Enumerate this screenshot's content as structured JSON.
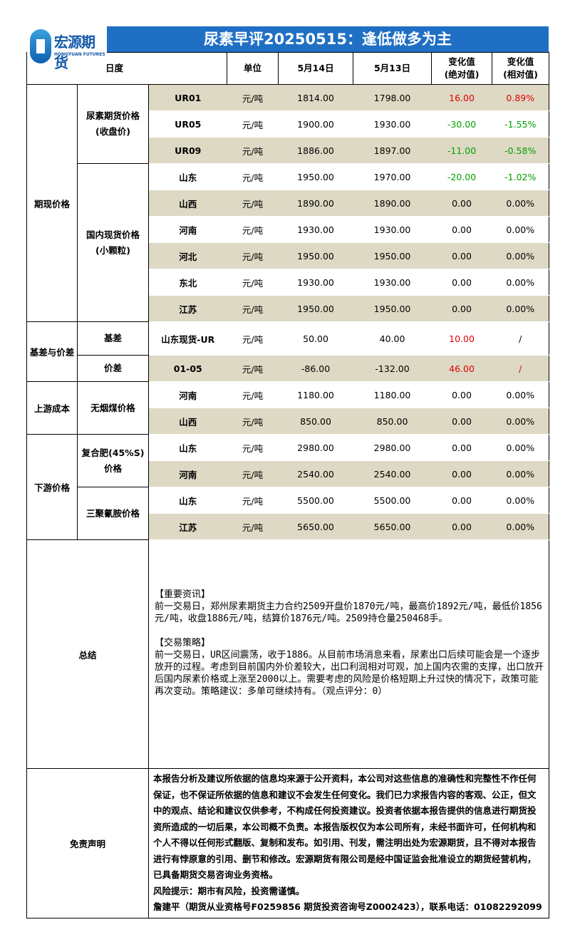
{
  "header": {
    "title": "尿素早评20250515：逢低做多为主",
    "logo_cn": "宏源期货",
    "logo_en": "HONGYUAN FUTURES"
  },
  "columns": {
    "period": "日度",
    "unit": "单位",
    "date1": "5月14日",
    "date2": "5月13日",
    "abs": "变化值\n(绝对值)",
    "rel": "变化值\n(相对值)"
  },
  "colors": {
    "up": "#e00000",
    "down": "#00a000",
    "shade": "#ddd9c4",
    "title_bg": "#1f6fc5"
  },
  "groups": [
    {
      "label": "期现价格",
      "subgroups": [
        {
          "label": "尿素期货价格\n(收盘价)",
          "rows": [
            {
              "item": "UR01",
              "unit": "元/吨",
              "d1": "1814.00",
              "d2": "1798.00",
              "abs": "16.00",
              "rel": "0.89%",
              "abs_tone": "up",
              "rel_tone": "up",
              "shade": true
            },
            {
              "item": "UR05",
              "unit": "元/吨",
              "d1": "1900.00",
              "d2": "1930.00",
              "abs": "-30.00",
              "rel": "-1.55%",
              "abs_tone": "down",
              "rel_tone": "down",
              "shade": false
            },
            {
              "item": "UR09",
              "unit": "元/吨",
              "d1": "1886.00",
              "d2": "1897.00",
              "abs": "-11.00",
              "rel": "-0.58%",
              "abs_tone": "down",
              "rel_tone": "down",
              "shade": true
            }
          ]
        },
        {
          "label": "国内现货价格\n(小颗粒)",
          "rows": [
            {
              "item": "山东",
              "unit": "元/吨",
              "d1": "1950.00",
              "d2": "1970.00",
              "abs": "-20.00",
              "rel": "-1.02%",
              "abs_tone": "down",
              "rel_tone": "down",
              "shade": false
            },
            {
              "item": "山西",
              "unit": "元/吨",
              "d1": "1890.00",
              "d2": "1890.00",
              "abs": "0.00",
              "rel": "0.00%",
              "shade": true
            },
            {
              "item": "河南",
              "unit": "元/吨",
              "d1": "1930.00",
              "d2": "1930.00",
              "abs": "0.00",
              "rel": "0.00%",
              "shade": false
            },
            {
              "item": "河北",
              "unit": "元/吨",
              "d1": "1950.00",
              "d2": "1950.00",
              "abs": "0.00",
              "rel": "0.00%",
              "shade": true
            },
            {
              "item": "东北",
              "unit": "元/吨",
              "d1": "1930.00",
              "d2": "1930.00",
              "abs": "0.00",
              "rel": "0.00%",
              "shade": false
            },
            {
              "item": "江苏",
              "unit": "元/吨",
              "d1": "1950.00",
              "d2": "1950.00",
              "abs": "0.00",
              "rel": "0.00%",
              "shade": true
            }
          ]
        }
      ]
    },
    {
      "label": "基差与价差",
      "subgroups": [
        {
          "label": "基差",
          "rows": [
            {
              "item": "山东现货-UR",
              "unit": "元/吨",
              "d1": "50.00",
              "d2": "40.00",
              "abs": "10.00",
              "rel": "/",
              "abs_tone": "up",
              "shade": false
            }
          ]
        },
        {
          "label": "价差",
          "rows": [
            {
              "item": "01-05",
              "unit": "元/吨",
              "d1": "-86.00",
              "d2": "-132.00",
              "abs": "46.00",
              "rel": "/",
              "abs_tone": "up",
              "rel_tone": "up",
              "shade": true
            }
          ]
        }
      ]
    },
    {
      "label": "上游成本",
      "subgroups": [
        {
          "label": "无烟煤价格",
          "rows": [
            {
              "item": "河南",
              "unit": "元/吨",
              "d1": "1180.00",
              "d2": "1180.00",
              "abs": "0.00",
              "rel": "0.00%",
              "shade": false
            },
            {
              "item": "山西",
              "unit": "元/吨",
              "d1": "850.00",
              "d2": "850.00",
              "abs": "0.00",
              "rel": "0.00%",
              "shade": true
            }
          ]
        }
      ]
    },
    {
      "label": "下游价格",
      "subgroups": [
        {
          "label": "复合肥(45%S)\n价格",
          "rows": [
            {
              "item": "山东",
              "unit": "元/吨",
              "d1": "2980.00",
              "d2": "2980.00",
              "abs": "0.00",
              "rel": "0.00%",
              "shade": false
            },
            {
              "item": "河南",
              "unit": "元/吨",
              "d1": "2540.00",
              "d2": "2540.00",
              "abs": "0.00",
              "rel": "0.00%",
              "shade": true
            }
          ]
        },
        {
          "label": "三聚氰胺价格",
          "rows": [
            {
              "item": "山东",
              "unit": "元/吨",
              "d1": "5500.00",
              "d2": "5500.00",
              "abs": "0.00",
              "rel": "0.00%",
              "shade": false
            },
            {
              "item": "江苏",
              "unit": "元/吨",
              "d1": "5650.00",
              "d2": "5650.00",
              "abs": "0.00",
              "rel": "0.00%",
              "shade": true
            }
          ]
        }
      ]
    }
  ],
  "summary": {
    "label": "总结",
    "text": "【重要资讯】\n前一交易日，郑州尿素期货主力合约2509开盘价1870元/吨，最高价1892元/吨，最低价1856元/吨，收盘1886元/吨，结算价1876元/吨。2509持仓量250468手。\n\n【交易策略】\n前一交易日，UR区间震荡，收于1886。从目前市场消息来看，尿素出口后续可能会是一个逐步放开的过程。考虑到目前国内外价差较大，出口利润相对可观，加上国内农需的支撑，出口放开后国内尿素价格或上涨至2000以上。需要考虑的风险是价格短期上升过快的情况下，政策可能再次变动。策略建议：多单可继续持有。（观点评分：0）"
  },
  "disclaimer": {
    "label": "免责声明",
    "text": "本报告分析及建议所依据的信息均来源于公开资料，本公司对这些信息的准确性和完整性不作任何保证，也不保证所依据的信息和建议不会发生任何变化。我们已力求报告内容的客观、公正，但文中的观点、结论和建议仅供参考，不构成任何投资建议。投资者依据本报告提供的信息进行期货投资所造成的一切后果，本公司概不负责。本报告版权仅为本公司所有，未经书面许可，任何机构和个人不得以任何形式翻版、复制和发布。如引用、刊发，需注明出处为宏源期货，且不得对本报告进行有悖原意的引用、删节和修改。宏源期货有限公司是经中国证监会批准设立的期货经营机构，已具备期货交易咨询业务资格。",
    "risk": "风险提示：期市有风险，投资需谨慎。",
    "author": "詹建平（期货从业资格号F0259856 期货投资咨询号Z0002423），联系电话：01082292099"
  }
}
